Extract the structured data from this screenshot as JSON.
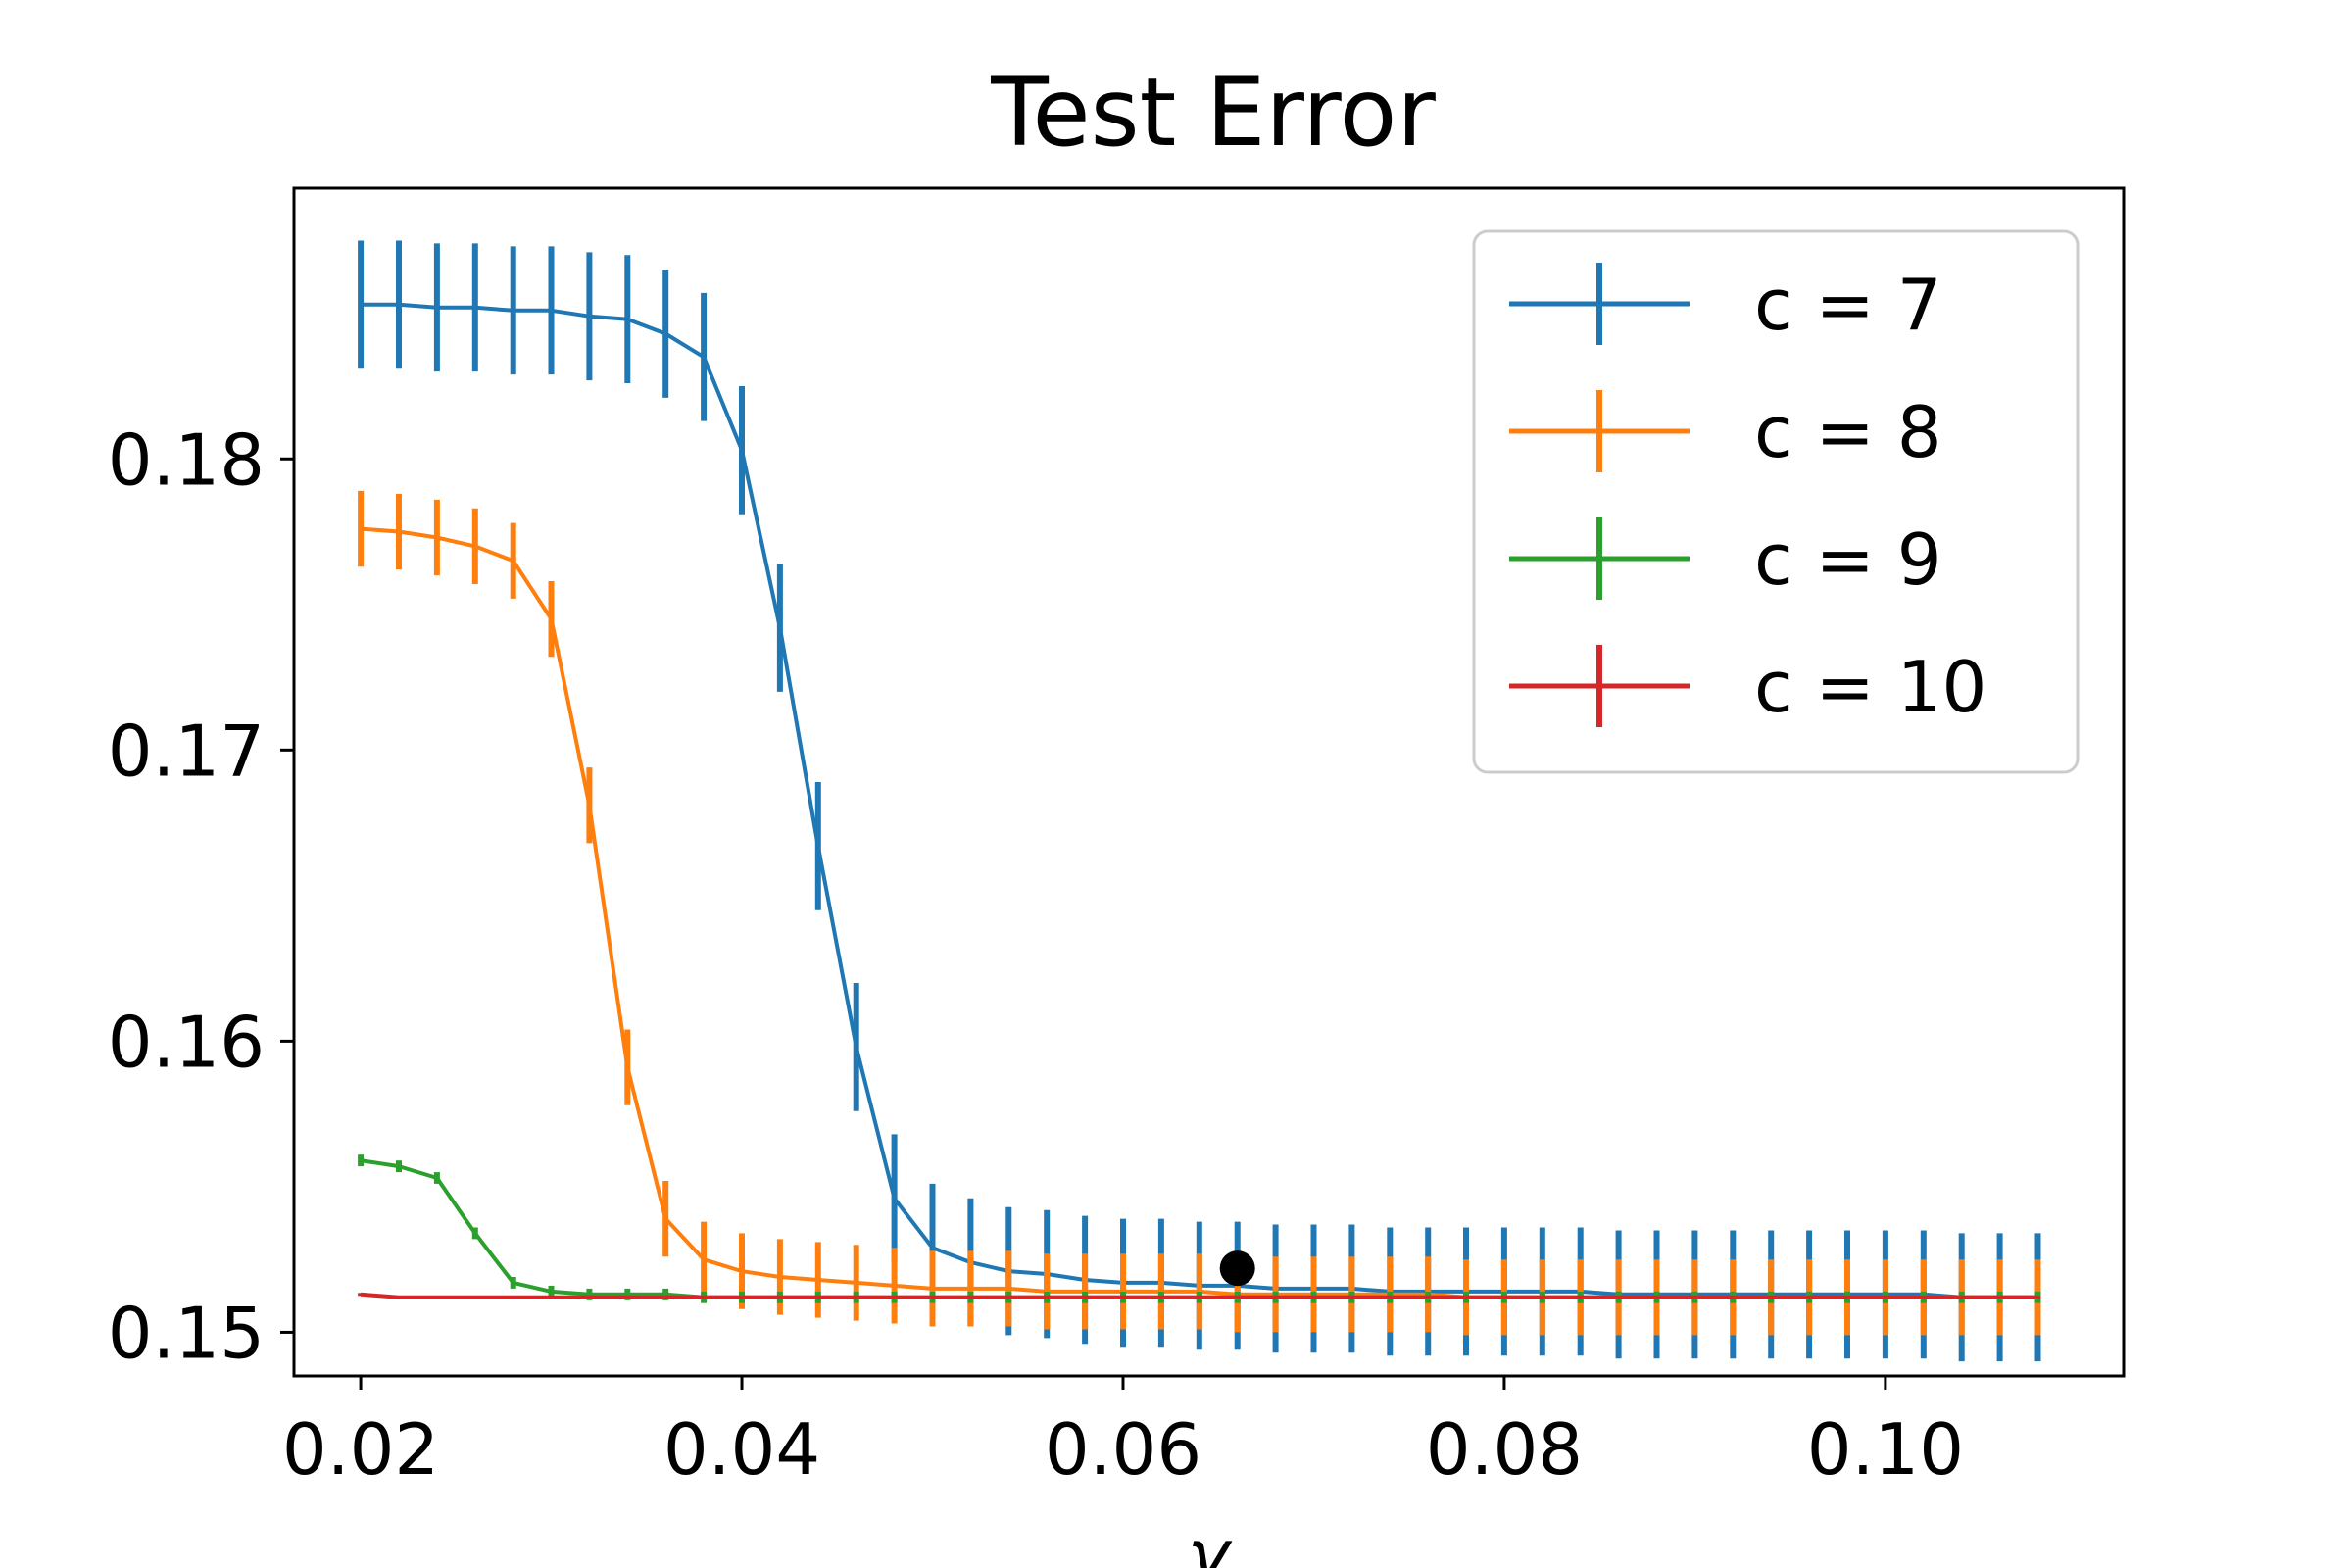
{
  "chart_data": {
    "type": "line",
    "title": "Test Error",
    "xlabel": "γ",
    "ylabel": "",
    "xlim": [
      0.0165,
      0.1125
    ],
    "ylim": [
      0.1485,
      0.1893
    ],
    "x_ticks": [
      0.02,
      0.04,
      0.06,
      0.08,
      0.1
    ],
    "x_tick_labels": [
      "0.02",
      "0.04",
      "0.06",
      "0.08",
      "0.10"
    ],
    "y_ticks": [
      0.15,
      0.16,
      0.17,
      0.18
    ],
    "y_tick_labels": [
      "0.15",
      "0.16",
      "0.17",
      "0.18"
    ],
    "legend_position": "top-right",
    "x": [
      0.02,
      0.022,
      0.024,
      0.026,
      0.028,
      0.03,
      0.032,
      0.034,
      0.036,
      0.038,
      0.04,
      0.042,
      0.044,
      0.046,
      0.048,
      0.05,
      0.052,
      0.054,
      0.056,
      0.058,
      0.06,
      0.062,
      0.064,
      0.066,
      0.068,
      0.07,
      0.072,
      0.074,
      0.076,
      0.078,
      0.08,
      0.082,
      0.084,
      0.086,
      0.088,
      0.09,
      0.092,
      0.094,
      0.096,
      0.098,
      0.1,
      0.102,
      0.104,
      0.106,
      0.108
    ],
    "series": [
      {
        "name": "c = 7",
        "color": "#1f77b4",
        "values": [
          0.1853,
          0.1853,
          0.1852,
          0.1852,
          0.1851,
          0.1851,
          0.1849,
          0.1848,
          0.1843,
          0.1835,
          0.1803,
          0.1742,
          0.1667,
          0.1598,
          0.1546,
          0.1529,
          0.1524,
          0.1521,
          0.152,
          0.1518,
          0.1517,
          0.1517,
          0.1516,
          0.1516,
          0.1515,
          0.1515,
          0.1515,
          0.1514,
          0.1514,
          0.1514,
          0.1514,
          0.1514,
          0.1514,
          0.1513,
          0.1513,
          0.1513,
          0.1513,
          0.1513,
          0.1513,
          0.1513,
          0.1513,
          0.1513,
          0.1512,
          0.1512,
          0.1512
        ],
        "errors": [
          0.0022,
          0.0022,
          0.0022,
          0.0022,
          0.0022,
          0.0022,
          0.0022,
          0.0022,
          0.0022,
          0.0022,
          0.0022,
          0.0022,
          0.0022,
          0.0022,
          0.0022,
          0.0022,
          0.0022,
          0.0022,
          0.0022,
          0.0022,
          0.0022,
          0.0022,
          0.0022,
          0.0022,
          0.0022,
          0.0022,
          0.0022,
          0.0022,
          0.0022,
          0.0022,
          0.0022,
          0.0022,
          0.0022,
          0.0022,
          0.0022,
          0.0022,
          0.0022,
          0.0022,
          0.0022,
          0.0022,
          0.0022,
          0.0022,
          0.0022,
          0.0022,
          0.0022
        ]
      },
      {
        "name": "c = 8",
        "color": "#ff7f0e",
        "values": [
          0.1776,
          0.1775,
          0.1773,
          0.177,
          0.1765,
          0.1745,
          0.1681,
          0.1591,
          0.1539,
          0.1525,
          0.1521,
          0.1519,
          0.1518,
          0.1517,
          0.1516,
          0.1515,
          0.1515,
          0.1515,
          0.1514,
          0.1514,
          0.1514,
          0.1514,
          0.1514,
          0.1513,
          0.1513,
          0.1513,
          0.1513,
          0.1513,
          0.1513,
          0.1512,
          0.1512,
          0.1512,
          0.1512,
          0.1512,
          0.1512,
          0.1512,
          0.1512,
          0.1512,
          0.1512,
          0.1512,
          0.1512,
          0.1512,
          0.1512,
          0.1512,
          0.1512
        ],
        "errors": [
          0.0013,
          0.0013,
          0.0013,
          0.0013,
          0.0013,
          0.0013,
          0.0013,
          0.0013,
          0.0013,
          0.0013,
          0.0013,
          0.0013,
          0.0013,
          0.0013,
          0.0013,
          0.0013,
          0.0013,
          0.0013,
          0.0013,
          0.0013,
          0.0013,
          0.0013,
          0.0013,
          0.0013,
          0.0013,
          0.0013,
          0.0013,
          0.0013,
          0.0013,
          0.0013,
          0.0013,
          0.0013,
          0.0013,
          0.0013,
          0.0013,
          0.0013,
          0.0013,
          0.0013,
          0.0013,
          0.0013,
          0.0013,
          0.0013,
          0.0013,
          0.0013,
          0.0013
        ]
      },
      {
        "name": "c = 9",
        "color": "#2ca02c",
        "values": [
          0.1559,
          0.1557,
          0.1553,
          0.1534,
          0.1517,
          0.1514,
          0.1513,
          0.1513,
          0.1513,
          0.1512,
          0.1512,
          0.1512,
          0.1512,
          0.1512,
          0.1512,
          0.1512,
          0.1512,
          0.1512,
          0.1512,
          0.1512,
          0.1512,
          0.1512,
          0.1512,
          0.1512,
          0.1512,
          0.1512,
          0.1512,
          0.1512,
          0.1512,
          0.1512,
          0.1512,
          0.1512,
          0.1512,
          0.1512,
          0.1512,
          0.1512,
          0.1512,
          0.1512,
          0.1512,
          0.1512,
          0.1512,
          0.1512,
          0.1512,
          0.1512,
          0.1512
        ],
        "errors": [
          0.0002,
          0.0002,
          0.0002,
          0.0002,
          0.0002,
          0.0002,
          0.0002,
          0.0002,
          0.0002,
          0.0002,
          0.0002,
          0.0002,
          0.0002,
          0.0002,
          0.0002,
          0.0002,
          0.0002,
          0.0002,
          0.0002,
          0.0002,
          0.0002,
          0.0002,
          0.0002,
          0.0002,
          0.0002,
          0.0002,
          0.0002,
          0.0002,
          0.0002,
          0.0002,
          0.0002,
          0.0002,
          0.0002,
          0.0002,
          0.0002,
          0.0002,
          0.0002,
          0.0002,
          0.0002,
          0.0002,
          0.0002,
          0.0002,
          0.0002,
          0.0002,
          0.0002
        ]
      },
      {
        "name": "c = 10",
        "color": "#d62728",
        "values": [
          0.1513,
          0.1512,
          0.1512,
          0.1512,
          0.1512,
          0.1512,
          0.1512,
          0.1512,
          0.1512,
          0.1512,
          0.1512,
          0.1512,
          0.1512,
          0.1512,
          0.1512,
          0.1512,
          0.1512,
          0.1512,
          0.1512,
          0.1512,
          0.1512,
          0.1512,
          0.1512,
          0.1512,
          0.1512,
          0.1512,
          0.1512,
          0.1512,
          0.1512,
          0.1512,
          0.1512,
          0.1512,
          0.1512,
          0.1512,
          0.1512,
          0.1512,
          0.1512,
          0.1512,
          0.1512,
          0.1512,
          0.1512,
          0.1512,
          0.1512,
          0.1512,
          0.1512
        ],
        "errors": [
          5e-05,
          5e-05,
          5e-05,
          5e-05,
          5e-05,
          5e-05,
          5e-05,
          5e-05,
          5e-05,
          5e-05,
          5e-05,
          5e-05,
          5e-05,
          5e-05,
          5e-05,
          5e-05,
          5e-05,
          5e-05,
          5e-05,
          5e-05,
          5e-05,
          5e-05,
          5e-05,
          5e-05,
          5e-05,
          5e-05,
          5e-05,
          5e-05,
          5e-05,
          5e-05,
          5e-05,
          5e-05,
          5e-05,
          5e-05,
          5e-05,
          5e-05,
          5e-05,
          5e-05,
          5e-05,
          5e-05,
          5e-05,
          5e-05,
          5e-05,
          5e-05,
          5e-05
        ]
      }
    ],
    "highlight_point": {
      "x": 0.066,
      "y": 0.1522,
      "color": "#000000"
    },
    "grid": false
  }
}
